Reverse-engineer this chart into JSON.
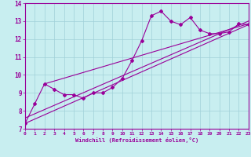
{
  "xlabel": "Windchill (Refroidissement éolien,°C)",
  "bg_color": "#c8eef0",
  "grid_color": "#a0d0d8",
  "line_color": "#990099",
  "xlim": [
    0,
    23
  ],
  "ylim": [
    7,
    14
  ],
  "yticks": [
    7,
    8,
    9,
    10,
    11,
    12,
    13,
    14
  ],
  "xticks": [
    0,
    1,
    2,
    3,
    4,
    5,
    6,
    7,
    8,
    9,
    10,
    11,
    12,
    13,
    14,
    15,
    16,
    17,
    18,
    19,
    20,
    21,
    22,
    23
  ],
  "main_data_x": [
    0,
    1,
    2,
    3,
    4,
    5,
    6,
    7,
    8,
    9,
    10,
    11,
    12,
    13,
    14,
    15,
    16,
    17,
    18,
    19,
    20,
    21,
    22,
    23
  ],
  "main_data_y": [
    7.3,
    8.4,
    9.5,
    9.2,
    8.9,
    8.9,
    8.7,
    9.0,
    9.0,
    9.3,
    9.8,
    10.8,
    11.9,
    13.3,
    13.55,
    13.0,
    12.8,
    13.2,
    12.5,
    12.3,
    12.3,
    12.4,
    12.85,
    12.8
  ],
  "line1_x": [
    0,
    23
  ],
  "line1_y": [
    7.3,
    12.8
  ],
  "line2_x": [
    2,
    23
  ],
  "line2_y": [
    9.5,
    12.85
  ],
  "line3_x": [
    0,
    23
  ],
  "line3_y": [
    7.6,
    13.0
  ]
}
